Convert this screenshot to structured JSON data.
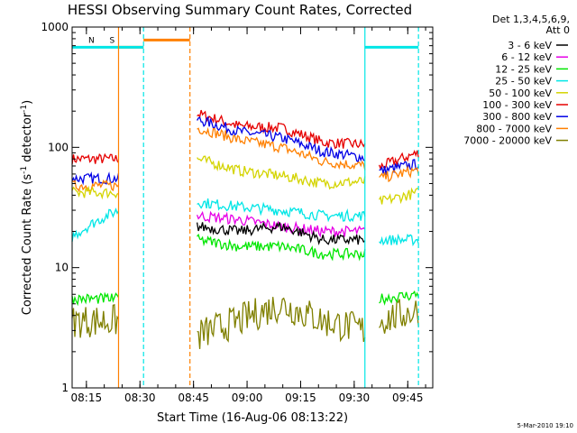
{
  "chart_data": {
    "type": "line",
    "title": "HESSI Observing Summary Count Rates, Corrected",
    "xlabel": "Start Time (16-Aug-06 08:13:22)",
    "ylabel": "Corrected Count Rate (s",
    "ylabel_sup1": "-1",
    "ylabel_mid": " detector",
    "ylabel_sup2": "-1",
    "ylabel_end": ")",
    "footer": "5-Mar-2010 19:10",
    "x_axis": {
      "type": "time",
      "range": [
        "08:11",
        "09:52"
      ],
      "tick_labels": [
        "08:15",
        "08:30",
        "08:45",
        "09:00",
        "09:15",
        "09:30",
        "09:45"
      ],
      "tick_minutes": [
        495,
        510,
        525,
        540,
        555,
        570,
        585
      ]
    },
    "y_axis": {
      "scale": "log",
      "range": [
        1,
        1000
      ],
      "tick_labels": [
        "1",
        "10",
        "100",
        "1000"
      ],
      "tick_values": [
        1,
        10,
        100,
        1000
      ]
    },
    "legend": {
      "header1": "Det 1,3,4,5,6,9,",
      "header2": "Att 0",
      "entries": [
        "3 - 6 keV",
        "6 - 12 keV",
        "12 - 25 keV",
        "25 - 50 keV",
        "50 - 100 keV",
        "100 - 300 keV",
        "300 - 800 keV",
        "800 - 7000 keV",
        "7000 - 20000 keV"
      ],
      "placement": "right"
    },
    "colors": {
      "3 - 6 keV": "#000000",
      "6 - 12 keV": "#e600e6",
      "12 - 25 keV": "#00e600",
      "25 - 50 keV": "#00e6e6",
      "50 - 100 keV": "#d4d400",
      "100 - 300 keV": "#e60000",
      "300 - 800 keV": "#0000e6",
      "800 - 7000 keV": "#ff8000",
      "7000 - 20000 keV": "#808000",
      "night": "#00e6e6",
      "saa": "#ff8000"
    },
    "segments": [
      {
        "start": "08:11",
        "end": "08:24"
      },
      {
        "start": "08:46",
        "end": "09:33"
      },
      {
        "start": "09:37",
        "end": "09:48"
      }
    ],
    "series": [
      {
        "name": "100 - 300 keV",
        "seg1": [
          80,
          80
        ],
        "seg2": [
          190,
          150,
          145,
          110,
          105
        ],
        "seg3": [
          68,
          90
        ]
      },
      {
        "name": "300 - 800 keV",
        "seg1": [
          55,
          55
        ],
        "seg2": [
          170,
          135,
          120,
          92,
          82
        ],
        "seg3": [
          63,
          73
        ]
      },
      {
        "name": "800 - 7000 keV",
        "seg1": [
          48,
          48
        ],
        "seg2": [
          145,
          115,
          100,
          76,
          70
        ],
        "seg3": [
          55,
          65
        ]
      },
      {
        "name": "50 - 100 keV",
        "seg1": [
          42,
          42
        ],
        "seg2": [
          80,
          64,
          58,
          50,
          52
        ],
        "seg3": [
          35,
          42
        ]
      },
      {
        "name": "25 - 50 keV",
        "seg1": [
          18,
          30
        ],
        "seg2": [
          35,
          32,
          30,
          27,
          27
        ],
        "seg3": [
          17,
          17
        ]
      },
      {
        "name": "6 - 12 keV",
        "seg1": [],
        "seg2": [
          27,
          25,
          22,
          20,
          20
        ],
        "seg3": []
      },
      {
        "name": "3 - 6 keV",
        "seg1": [],
        "seg2": [
          22,
          20,
          22,
          17,
          17
        ],
        "seg3": []
      },
      {
        "name": "12 - 25 keV",
        "seg1": [],
        "seg2": [
          17,
          15,
          15,
          13,
          13
        ],
        "seg3": []
      },
      {
        "name": "7000 - 20000 keV",
        "seg1": [
          3.6,
          3.6
        ],
        "seg2": [
          2.7,
          3.6,
          4.9,
          3.6,
          3.0
        ],
        "seg3": [
          3.6,
          4.4
        ]
      },
      {
        "name": "12 - 25 keV lowseg",
        "seg1": [
          5.5,
          5.5
        ],
        "seg2": [],
        "seg3": [
          5.5,
          6.0
        ]
      }
    ],
    "bars": [
      {
        "label": "S",
        "color": "saa",
        "from": "08:24",
        "to": "08:31",
        "value": 680
      },
      {
        "label": "N",
        "color": "night",
        "from": "08:11",
        "to": "08:31",
        "value": 680
      },
      {
        "label": "",
        "color": "saa",
        "from": "08:31",
        "to": "08:44",
        "value": 780
      },
      {
        "label": "",
        "color": "night",
        "from": "09:33",
        "to": "09:48",
        "value": 680
      }
    ],
    "markers": [
      {
        "time": "08:24",
        "color": "saa",
        "style": "solid"
      },
      {
        "time": "08:31",
        "color": "night",
        "style": "dashed"
      },
      {
        "time": "08:44",
        "color": "saa",
        "style": "dashed"
      },
      {
        "time": "09:33",
        "color": "night",
        "style": "solid"
      },
      {
        "time": "09:48",
        "color": "night",
        "style": "dashed"
      }
    ]
  }
}
